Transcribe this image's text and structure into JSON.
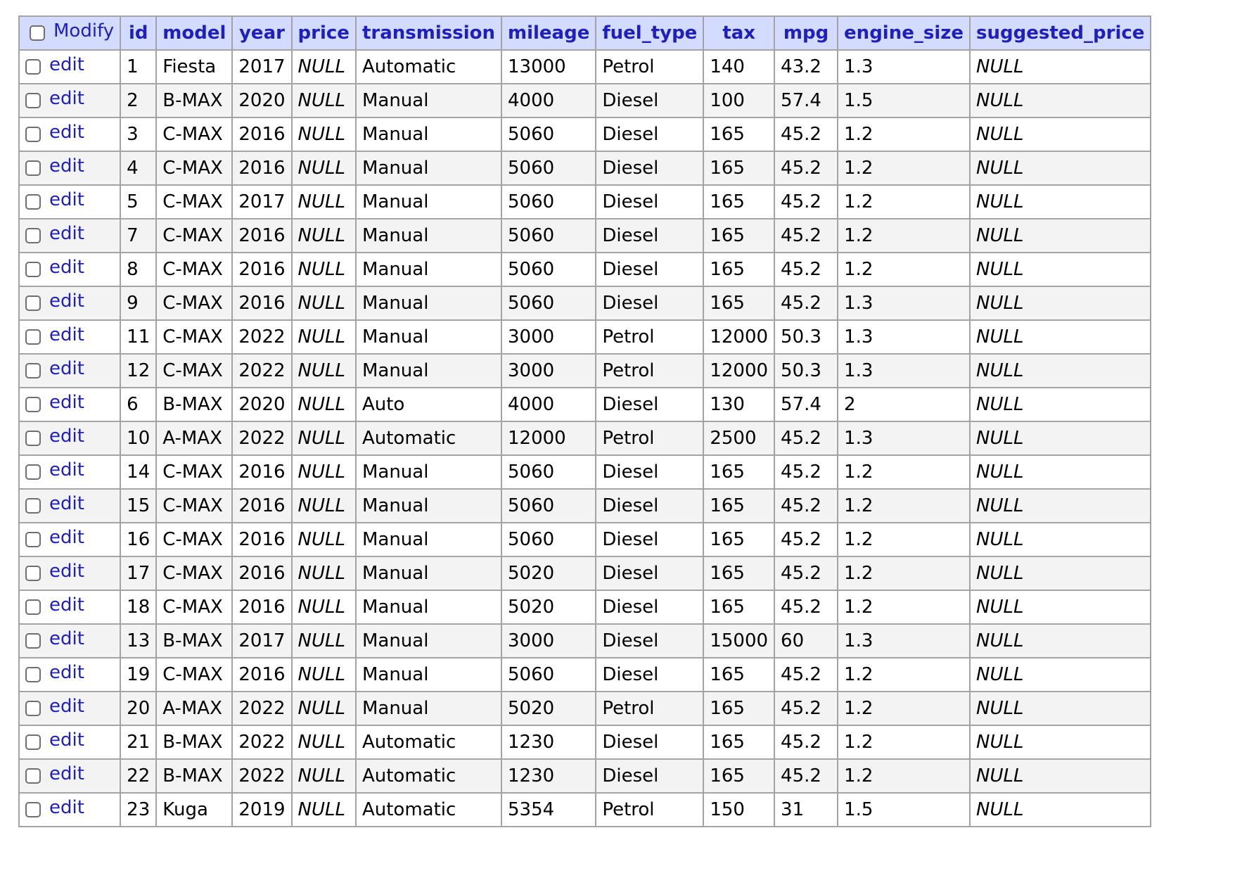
{
  "colors": {
    "header_bg": "#d3dcff",
    "header_text": "#1f1fbf",
    "link": "#1f1fbf",
    "border": "#a3a3a3",
    "row_alt": "#f3f3f3"
  },
  "table": {
    "modify_label": "Modify",
    "edit_label": "edit",
    "columns": [
      "id",
      "model",
      "year",
      "price",
      "transmission",
      "mileage",
      "fuel_type",
      "tax",
      "mpg",
      "engine_size",
      "suggested_price"
    ],
    "rows": [
      [
        "1",
        "Fiesta",
        "2017",
        "NULL",
        "Automatic",
        "13000",
        "Petrol",
        "140",
        "43.2",
        "1.3",
        "NULL"
      ],
      [
        "2",
        "B-MAX",
        "2020",
        "NULL",
        "Manual",
        "4000",
        "Diesel",
        "100",
        "57.4",
        "1.5",
        "NULL"
      ],
      [
        "3",
        "C-MAX",
        "2016",
        "NULL",
        "Manual",
        "5060",
        "Diesel",
        "165",
        "45.2",
        "1.2",
        "NULL"
      ],
      [
        "4",
        "C-MAX",
        "2016",
        "NULL",
        "Manual",
        "5060",
        "Diesel",
        "165",
        "45.2",
        "1.2",
        "NULL"
      ],
      [
        "5",
        "C-MAX",
        "2017",
        "NULL",
        "Manual",
        "5060",
        "Diesel",
        "165",
        "45.2",
        "1.2",
        "NULL"
      ],
      [
        "7",
        "C-MAX",
        "2016",
        "NULL",
        "Manual",
        "5060",
        "Diesel",
        "165",
        "45.2",
        "1.2",
        "NULL"
      ],
      [
        "8",
        "C-MAX",
        "2016",
        "NULL",
        "Manual",
        "5060",
        "Diesel",
        "165",
        "45.2",
        "1.2",
        "NULL"
      ],
      [
        "9",
        "C-MAX",
        "2016",
        "NULL",
        "Manual",
        "5060",
        "Diesel",
        "165",
        "45.2",
        "1.3",
        "NULL"
      ],
      [
        "11",
        "C-MAX",
        "2022",
        "NULL",
        "Manual",
        "3000",
        "Petrol",
        "12000",
        "50.3",
        "1.3",
        "NULL"
      ],
      [
        "12",
        "C-MAX",
        "2022",
        "NULL",
        "Manual",
        "3000",
        "Petrol",
        "12000",
        "50.3",
        "1.3",
        "NULL"
      ],
      [
        "6",
        "B-MAX",
        "2020",
        "NULL",
        "Auto",
        "4000",
        "Diesel",
        "130",
        "57.4",
        "2",
        "NULL"
      ],
      [
        "10",
        "A-MAX",
        "2022",
        "NULL",
        "Automatic",
        "12000",
        "Petrol",
        "2500",
        "45.2",
        "1.3",
        "NULL"
      ],
      [
        "14",
        "C-MAX",
        "2016",
        "NULL",
        "Manual",
        "5060",
        "Diesel",
        "165",
        "45.2",
        "1.2",
        "NULL"
      ],
      [
        "15",
        "C-MAX",
        "2016",
        "NULL",
        "Manual",
        "5060",
        "Diesel",
        "165",
        "45.2",
        "1.2",
        "NULL"
      ],
      [
        "16",
        "C-MAX",
        "2016",
        "NULL",
        "Manual",
        "5060",
        "Diesel",
        "165",
        "45.2",
        "1.2",
        "NULL"
      ],
      [
        "17",
        "C-MAX",
        "2016",
        "NULL",
        "Manual",
        "5020",
        "Diesel",
        "165",
        "45.2",
        "1.2",
        "NULL"
      ],
      [
        "18",
        "C-MAX",
        "2016",
        "NULL",
        "Manual",
        "5020",
        "Diesel",
        "165",
        "45.2",
        "1.2",
        "NULL"
      ],
      [
        "13",
        "B-MAX",
        "2017",
        "NULL",
        "Manual",
        "3000",
        "Diesel",
        "15000",
        "60",
        "1.3",
        "NULL"
      ],
      [
        "19",
        "C-MAX",
        "2016",
        "NULL",
        "Manual",
        "5060",
        "Diesel",
        "165",
        "45.2",
        "1.2",
        "NULL"
      ],
      [
        "20",
        "A-MAX",
        "2022",
        "NULL",
        "Manual",
        "5020",
        "Petrol",
        "165",
        "45.2",
        "1.2",
        "NULL"
      ],
      [
        "21",
        "B-MAX",
        "2022",
        "NULL",
        "Automatic",
        "1230",
        "Diesel",
        "165",
        "45.2",
        "1.2",
        "NULL"
      ],
      [
        "22",
        "B-MAX",
        "2022",
        "NULL",
        "Automatic",
        "1230",
        "Diesel",
        "165",
        "45.2",
        "1.2",
        "NULL"
      ],
      [
        "23",
        "Kuga",
        "2019",
        "NULL",
        "Automatic",
        "5354",
        "Petrol",
        "150",
        "31",
        "1.5",
        "NULL"
      ]
    ]
  }
}
